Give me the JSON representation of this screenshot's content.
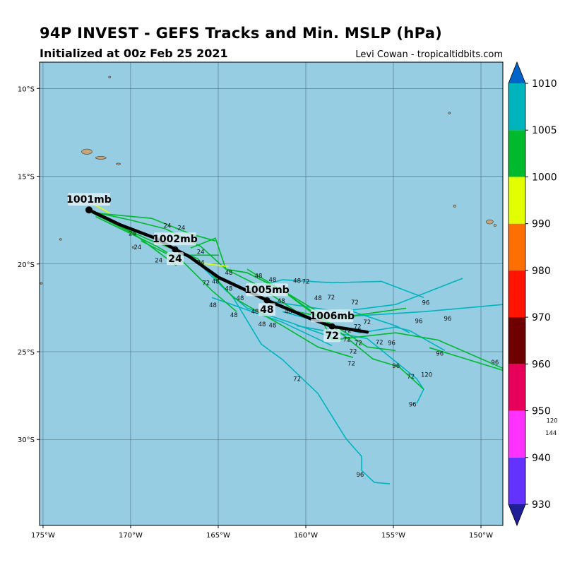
{
  "header": {
    "title": "94P INVEST - GEFS Tracks and Min. MSLP (hPa)",
    "subtitle": "Initialized at 00z Feb 25 2021",
    "credit": "Levi Cowan - tropicaltidbits.com"
  },
  "map": {
    "lon_range": [
      -175.2,
      -148.75
    ],
    "lat_range": [
      -34.9,
      -8.5
    ],
    "ocean_color": "#96cde3",
    "land_color": "#c8a47a",
    "grid": true,
    "lon_ticks": [
      {
        "value": -175,
        "label": "175°W"
      },
      {
        "value": -170,
        "label": "170°W"
      },
      {
        "value": -165,
        "label": "165°W"
      },
      {
        "value": -160,
        "label": "160°W"
      },
      {
        "value": -155,
        "label": "155°W"
      },
      {
        "value": -150,
        "label": "150°W"
      }
    ],
    "lat_ticks": [
      {
        "value": -10,
        "label": "10°S"
      },
      {
        "value": -15,
        "label": "15°S"
      },
      {
        "value": -20,
        "label": "20°S"
      },
      {
        "value": -25,
        "label": "25°S"
      },
      {
        "value": -30,
        "label": "30°S"
      }
    ],
    "islands": [
      [
        -172.5,
        -13.6,
        0.3,
        0.15
      ],
      [
        -171.7,
        -13.95,
        0.3,
        0.08
      ],
      [
        -170.7,
        -14.3,
        0.12,
        0.04
      ],
      [
        -174.0,
        -18.6,
        0.06,
        0.05
      ],
      [
        -169.85,
        -19.05,
        0.06,
        0.05
      ],
      [
        -149.5,
        -17.6,
        0.2,
        0.12
      ],
      [
        -149.2,
        -17.8,
        0.07,
        0.06
      ],
      [
        -151.5,
        -16.7,
        0.05,
        0.07
      ],
      [
        -151.8,
        -11.4,
        0.03,
        0.03
      ],
      [
        -171.2,
        -9.35,
        0.03,
        0.03
      ],
      [
        -175.1,
        -21.1,
        0.05,
        0.05
      ]
    ]
  },
  "tracks": {
    "mean_color": "#000000",
    "mean_track": [
      [
        -172.38,
        -16.92
      ],
      [
        -170.6,
        -17.77
      ],
      [
        -168.59,
        -18.53
      ],
      [
        -167.46,
        -19.17
      ],
      [
        -166.65,
        -19.58
      ],
      [
        -164.96,
        -20.78
      ],
      [
        -163.55,
        -21.43
      ],
      [
        -162.22,
        -22.07
      ],
      [
        -160.93,
        -22.6
      ],
      [
        -159.72,
        -23.12
      ],
      [
        -158.5,
        -23.56
      ],
      [
        -156.49,
        -23.88
      ]
    ],
    "mean_points": [
      {
        "hour": 0,
        "lon": -172.38,
        "lat": -16.92,
        "mslp": "1001mb",
        "hour_label": ""
      },
      {
        "hour": 24,
        "lon": -167.46,
        "lat": -19.17,
        "mslp": "1002mb",
        "hour_label": "24"
      },
      {
        "hour": 48,
        "lon": -162.22,
        "lat": -22.07,
        "mslp": "1005mb",
        "hour_label": "48"
      },
      {
        "hour": 72,
        "lon": -158.5,
        "lat": -23.56,
        "mslp": "1006mb",
        "hour_label": "72"
      }
    ],
    "members": [
      {
        "color": "#00b4be",
        "points": [
          [
            -163.55,
            -21.51
          ],
          [
            -161.33,
            -20.9
          ],
          [
            -158.51,
            -21.07
          ],
          [
            -155.69,
            -20.99
          ],
          [
            -153.27,
            -21.91
          ]
        ]
      },
      {
        "color": "#00b4be",
        "points": [
          [
            -162.14,
            -22.11
          ],
          [
            -158.1,
            -22.72
          ],
          [
            -154.88,
            -22.31
          ],
          [
            -151.05,
            -20.82
          ]
        ]
      },
      {
        "color": "#00b4be",
        "points": [
          [
            -159.72,
            -23.12
          ],
          [
            -153.27,
            -22.72
          ],
          [
            -148.75,
            -22.31
          ]
        ]
      },
      {
        "color": "#00b4be",
        "points": [
          [
            -161.33,
            -22.72
          ],
          [
            -156.9,
            -23.92
          ],
          [
            -154.88,
            -23.6
          ],
          [
            -154.07,
            -23.8
          ],
          [
            -152.06,
            -24.93
          ]
        ]
      },
      {
        "color": "#00b4be",
        "points": [
          [
            -164.15,
            -21.91
          ],
          [
            -162.54,
            -24.57
          ],
          [
            -161.33,
            -25.45
          ],
          [
            -159.31,
            -27.38
          ],
          [
            -157.7,
            -29.96
          ],
          [
            -156.81,
            -30.97
          ],
          [
            -156.81,
            -31.77
          ],
          [
            -156.09,
            -32.45
          ],
          [
            -155.2,
            -32.53
          ]
        ]
      },
      {
        "color": "#00b4be",
        "points": [
          [
            -160.52,
            -23.52
          ],
          [
            -156.49,
            -24.25
          ],
          [
            -153.67,
            -26.54
          ],
          [
            -153.27,
            -27.14
          ],
          [
            -153.67,
            -27.95
          ]
        ]
      },
      {
        "color": "#00b4be",
        "points": [
          [
            -165.36,
            -21.91
          ],
          [
            -161.33,
            -23.32
          ],
          [
            -158.51,
            -24.65
          ]
        ]
      },
      {
        "color": "#00b4be",
        "points": [
          [
            -157.3,
            -22.72
          ],
          [
            -154.88,
            -23.52
          ],
          [
            -154.07,
            -23.92
          ]
        ]
      },
      {
        "color": "#00b4be",
        "points": [
          [
            -166.17,
            -19.9
          ],
          [
            -164.56,
            -21.51
          ],
          [
            -163.35,
            -22.52
          ],
          [
            -160.93,
            -23.32
          ],
          [
            -158.1,
            -24.33
          ]
        ]
      },
      {
        "color": "#00b92d",
        "points": [
          [
            -172.22,
            -17.08
          ],
          [
            -168.79,
            -17.4
          ],
          [
            -166.57,
            -18.29
          ],
          [
            -165.16,
            -18.69
          ]
        ]
      },
      {
        "color": "#00b92d",
        "points": [
          [
            -172.22,
            -17.08
          ],
          [
            -169.8,
            -18.29
          ],
          [
            -167.38,
            -20.1
          ]
        ]
      },
      {
        "color": "#00b92d",
        "points": [
          [
            -172.3,
            -17.0
          ],
          [
            -170.0,
            -17.5
          ],
          [
            -168.0,
            -18.0
          ],
          [
            -166.0,
            -19.0
          ],
          [
            -164.56,
            -20.3
          ],
          [
            -163.35,
            -20.5
          ],
          [
            -161.33,
            -21.51
          ],
          [
            -159.72,
            -22.72
          ],
          [
            -157.7,
            -23.92
          ],
          [
            -156.49,
            -24.73
          ],
          [
            -154.88,
            -24.93
          ]
        ]
      },
      {
        "color": "#00b92d",
        "points": [
          [
            -164.56,
            -20.3
          ],
          [
            -163.35,
            -20.5
          ],
          [
            -161.33,
            -21.51
          ],
          [
            -158.51,
            -23.52
          ],
          [
            -156.17,
            -25.41
          ],
          [
            -154.68,
            -25.86
          ],
          [
            -153.27,
            -27.14
          ]
        ]
      },
      {
        "color": "#00b92d",
        "points": [
          [
            -163.35,
            -20.3
          ],
          [
            -159.31,
            -22.72
          ],
          [
            -158.51,
            -24.33
          ],
          [
            -154.88,
            -23.92
          ],
          [
            -152.46,
            -24.33
          ],
          [
            -148.75,
            -25.94
          ]
        ]
      },
      {
        "color": "#00b92d",
        "points": [
          [
            -166.57,
            -19.09
          ],
          [
            -165.16,
            -18.53
          ],
          [
            -164.56,
            -20.3
          ],
          [
            -162.94,
            -21.11
          ],
          [
            -160.52,
            -22.72
          ],
          [
            -158.51,
            -23.12
          ],
          [
            -155.69,
            -22.72
          ],
          [
            -154.27,
            -22.52
          ]
        ]
      },
      {
        "color": "#00b92d",
        "points": [
          [
            -172.0,
            -17.2
          ],
          [
            -169.0,
            -18.6
          ],
          [
            -166.17,
            -19.7
          ],
          [
            -164.15,
            -21.91
          ],
          [
            -161.33,
            -23.52
          ],
          [
            -159.31,
            -24.73
          ],
          [
            -157.3,
            -25.33
          ]
        ]
      },
      {
        "color": "#00b92d",
        "points": [
          [
            -172.0,
            -17.3
          ],
          [
            -168.5,
            -19.0
          ],
          [
            -166.98,
            -19.9
          ],
          [
            -165.36,
            -21.51
          ],
          [
            -163.95,
            -22.72
          ]
        ]
      },
      {
        "color": "#00b92d",
        "points": [
          [
            -169.4,
            -18.69
          ],
          [
            -167.78,
            -19.5
          ],
          [
            -164.96,
            -19.5
          ]
        ]
      },
      {
        "color": "#00b92d",
        "points": [
          [
            -152.94,
            -24.77
          ],
          [
            -148.75,
            -26.06
          ]
        ]
      },
      {
        "color": "#e1ff00",
        "points": [
          [
            -172.1,
            -16.6
          ],
          [
            -171.2,
            -17.1
          ]
        ]
      },
      {
        "color": "#e1ff00",
        "points": [
          [
            -166.0,
            -19.95
          ],
          [
            -164.4,
            -20.15
          ]
        ]
      }
    ],
    "hour_labels": [
      {
        "text": "24",
        "lon": -169.9,
        "lat": -18.25
      },
      {
        "text": "24",
        "lon": -167.9,
        "lat": -18.13
      },
      {
        "text": "24",
        "lon": -167.1,
        "lat": -17.93
      },
      {
        "text": "24",
        "lon": -169.6,
        "lat": -19.05
      },
      {
        "text": "24",
        "lon": -168.4,
        "lat": -19.78
      },
      {
        "text": "24",
        "lon": -166.0,
        "lat": -19.3
      },
      {
        "text": "24",
        "lon": -166.0,
        "lat": -19.58
      },
      {
        "text": "48",
        "lon": -164.4,
        "lat": -20.5
      },
      {
        "text": "48",
        "lon": -164.4,
        "lat": -21.4
      },
      {
        "text": "48",
        "lon": -165.3,
        "lat": -22.35
      },
      {
        "text": "48",
        "lon": -164.1,
        "lat": -22.9
      },
      {
        "text": "48",
        "lon": -162.7,
        "lat": -21.0
      },
      {
        "text": "48",
        "lon": -161.9,
        "lat": -20.9
      },
      {
        "text": "48",
        "lon": -160.5,
        "lat": -20.95
      },
      {
        "text": "48",
        "lon": -163.75,
        "lat": -21.95
      },
      {
        "text": "48",
        "lon": -162.9,
        "lat": -22.7
      },
      {
        "text": "48",
        "lon": -162.5,
        "lat": -23.1
      },
      {
        "text": "48",
        "lon": -161.9,
        "lat": -23.5
      },
      {
        "text": "48",
        "lon": -161.0,
        "lat": -22.7
      },
      {
        "text": "48",
        "lon": -161.4,
        "lat": -22.1
      },
      {
        "text": "48",
        "lon": -159.3,
        "lat": -21.95
      },
      {
        "text": "48",
        "lon": -164.7,
        "lat": -21.0
      },
      {
        "text": "72",
        "lon": -160.0,
        "lat": -21.0
      },
      {
        "text": "72",
        "lon": -159.0,
        "lat": -21.9
      },
      {
        "text": "72",
        "lon": -157.2,
        "lat": -22.5
      },
      {
        "text": "72",
        "lon": -157.05,
        "lat": -23.25
      },
      {
        "text": "72",
        "lon": -156.5,
        "lat": -23.3
      },
      {
        "text": "72",
        "lon": -157.65,
        "lat": -24.3
      },
      {
        "text": "72",
        "lon": -157.3,
        "lat": -24.65
      },
      {
        "text": "72",
        "lon": -157.0,
        "lat": -24.5
      },
      {
        "text": "72",
        "lon": -155.8,
        "lat": -24.45
      },
      {
        "text": "72",
        "lon": -157.4,
        "lat": -25.35
      },
      {
        "text": "72",
        "lon": -160.5,
        "lat": -26.55
      },
      {
        "text": "72",
        "lon": -165.25,
        "lat": -21.07
      },
      {
        "text": "72",
        "lon": -158.05,
        "lat": -23.45
      },
      {
        "text": "72",
        "lon": -154.0,
        "lat": -26.4
      },
      {
        "text": "96",
        "lon": -153.15,
        "lat": -22.2
      },
      {
        "text": "96",
        "lon": -153.55,
        "lat": -23.25
      },
      {
        "text": "96",
        "lon": -151.9,
        "lat": -23.1
      },
      {
        "text": "96",
        "lon": -155.1,
        "lat": -24.5
      },
      {
        "text": "96",
        "lon": -152.35,
        "lat": -25.1
      },
      {
        "text": "96",
        "lon": -154.85,
        "lat": -25.8
      },
      {
        "text": "96",
        "lon": -149.2,
        "lat": -25.6
      },
      {
        "text": "96",
        "lon": -153.9,
        "lat": -28.0
      },
      {
        "text": "96",
        "lon": -156.9,
        "lat": -32.0
      },
      {
        "text": "120",
        "lon": -153.1,
        "lat": -26.3
      },
      {
        "text": "120",
        "lon": -145.5,
        "lat": -28.6
      },
      {
        "text": "144",
        "lon": -146.0,
        "lat": -29.3
      }
    ]
  },
  "colorbar": {
    "min": 930,
    "max": 1010,
    "bins": [
      {
        "from": 930,
        "to": 940,
        "color": "#6432ff"
      },
      {
        "from": 940,
        "to": 950,
        "color": "#ff32ff"
      },
      {
        "from": 950,
        "to": 960,
        "color": "#e6005a"
      },
      {
        "from": 960,
        "to": 970,
        "color": "#6e0000"
      },
      {
        "from": 970,
        "to": 980,
        "color": "#ff1400"
      },
      {
        "from": 980,
        "to": 990,
        "color": "#ff6e00"
      },
      {
        "from": 990,
        "to": 1000,
        "color": "#e1ff00"
      },
      {
        "from": 1000,
        "to": 1005,
        "color": "#00b92d"
      },
      {
        "from": 1005,
        "to": 1010,
        "color": "#00b4be"
      }
    ],
    "over_color": "#0064c8",
    "under_color": "#1e1e96",
    "ticks": [
      "1010",
      "1005",
      "1000",
      "990",
      "980",
      "970",
      "960",
      "950",
      "940",
      "930"
    ]
  }
}
